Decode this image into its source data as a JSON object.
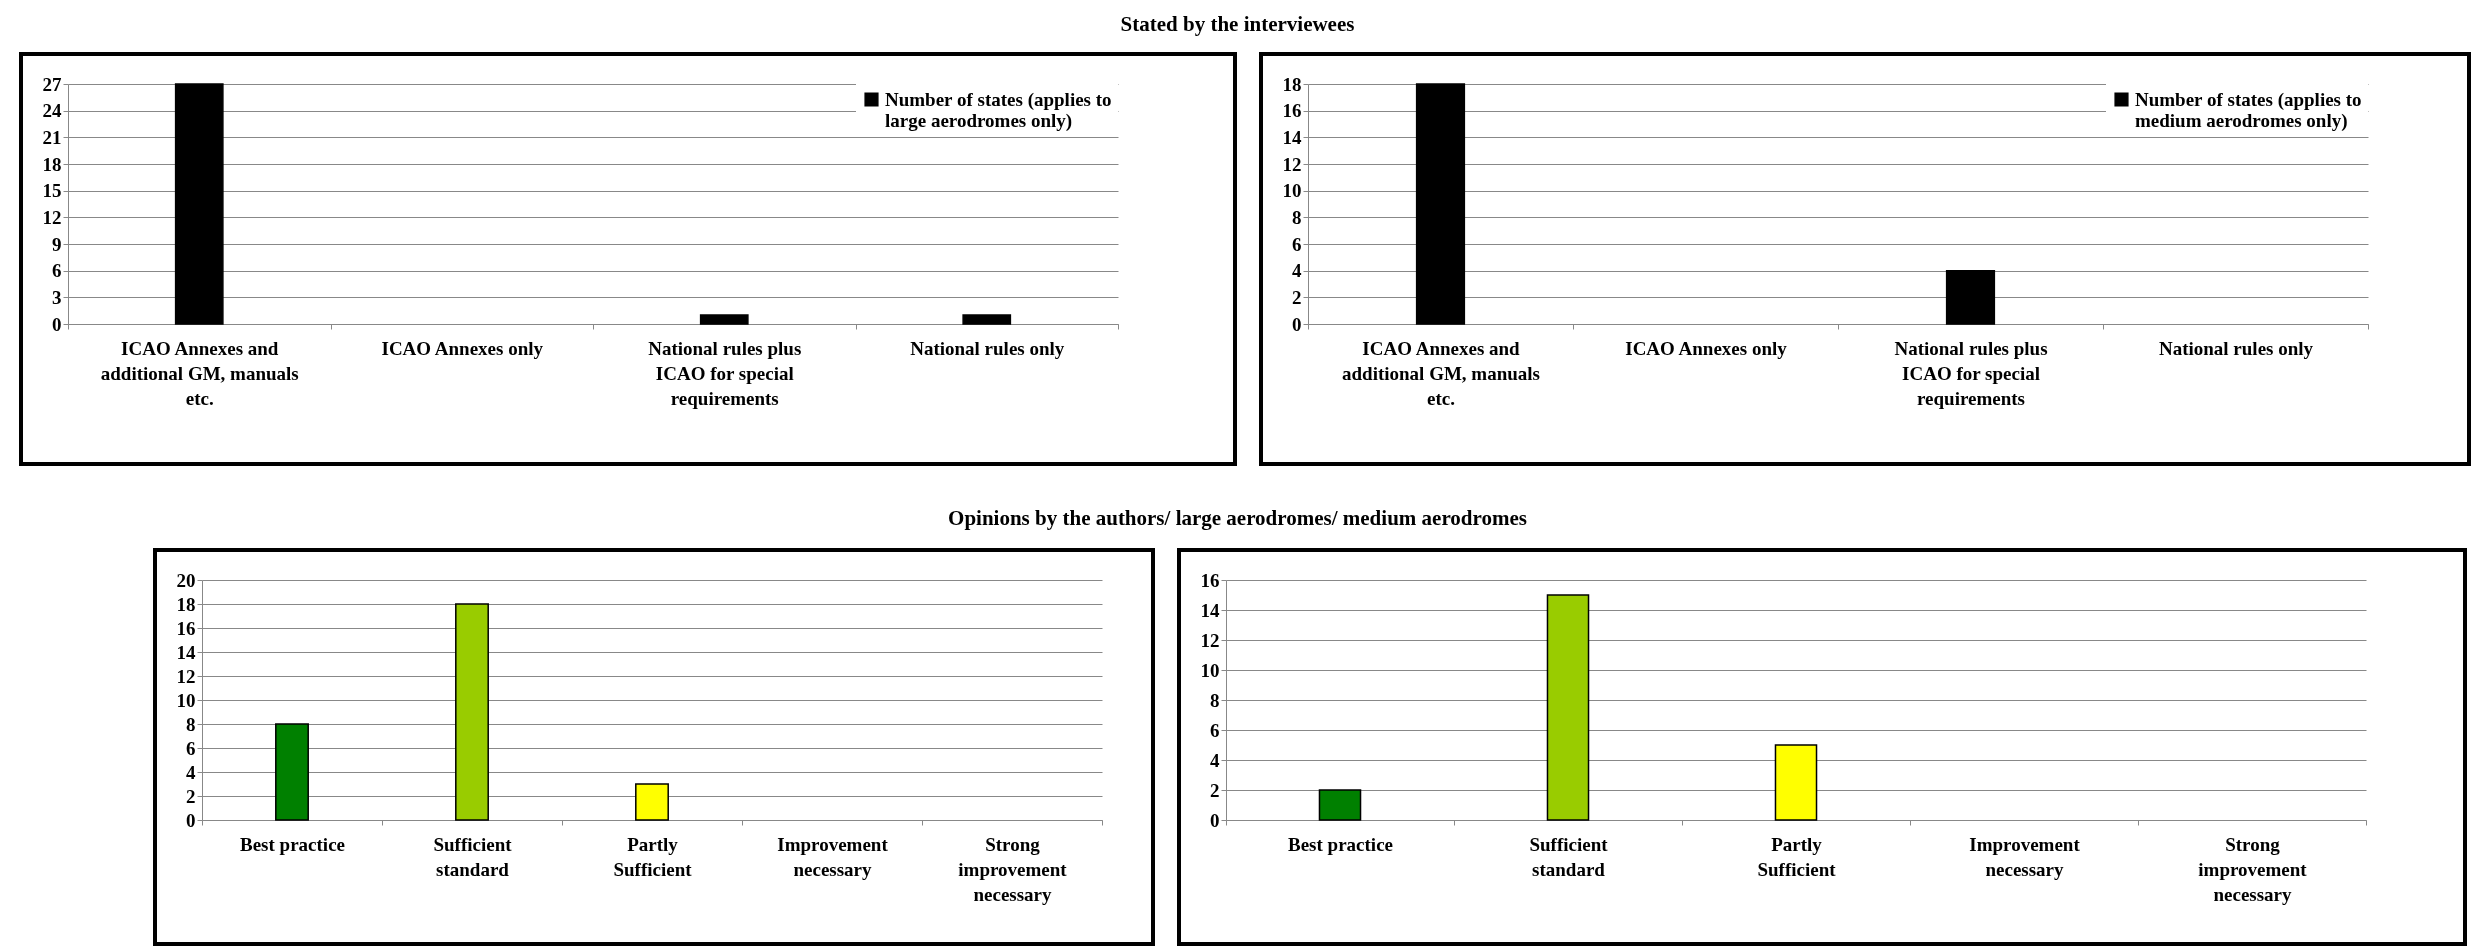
{
  "chart_data": [
    {
      "type": "bar",
      "title": "Stated by the interviewees",
      "categories": [
        "ICAO Annexes and additional GM, manuals etc.",
        "ICAO Annexes only",
        "National rules plus ICAO for special requirements",
        "National rules only"
      ],
      "series": [
        {
          "name": "Number of states (applies to large aerodromes only)",
          "color": "#000000",
          "values": [
            27,
            0,
            1,
            1
          ]
        }
      ],
      "ylim": [
        0,
        27
      ],
      "yticks": [
        0,
        3,
        6,
        9,
        12,
        15,
        18,
        21,
        24,
        27
      ],
      "grid": "y",
      "legend": "top right"
    },
    {
      "type": "bar",
      "categories": [
        "ICAO Annexes and additional GM, manuals etc.",
        "ICAO Annexes only",
        "National rules plus ICAO for special requirements",
        "National rules only"
      ],
      "series": [
        {
          "name": "Number of states (applies to medium aerodromes only)",
          "color": "#000000",
          "values": [
            18,
            0,
            4,
            0
          ]
        }
      ],
      "ylim": [
        0,
        18
      ],
      "yticks": [
        0,
        2,
        4,
        6,
        8,
        10,
        12,
        14,
        16,
        18
      ],
      "grid": "y",
      "legend": "top right"
    },
    {
      "type": "bar",
      "title": "Opinions by the authors/ large aerodromes/ medium aerodromes",
      "categories": [
        "Best practice",
        "Sufficient standard",
        "Partly Sufficient",
        "Improvement necessary",
        "Strong improvement necessary"
      ],
      "values": [
        8,
        18,
        3,
        0,
        0
      ],
      "colors": [
        "#008000",
        "#99cc00",
        "#ffff00",
        "#ff9900",
        "#ff0000"
      ],
      "ylim": [
        0,
        20
      ],
      "yticks": [
        0,
        2,
        4,
        6,
        8,
        10,
        12,
        14,
        16,
        18,
        20
      ],
      "grid": "y"
    },
    {
      "type": "bar",
      "categories": [
        "Best practice",
        "Sufficient standard",
        "Partly Sufficient",
        "Improvement necessary",
        "Strong improvement necessary"
      ],
      "values": [
        2,
        15,
        5,
        0,
        0
      ],
      "colors": [
        "#008000",
        "#99cc00",
        "#ffff00",
        "#ff9900",
        "#ff0000"
      ],
      "ylim": [
        0,
        16
      ],
      "yticks": [
        0,
        2,
        4,
        6,
        8,
        10,
        12,
        14,
        16
      ],
      "grid": "y"
    }
  ]
}
